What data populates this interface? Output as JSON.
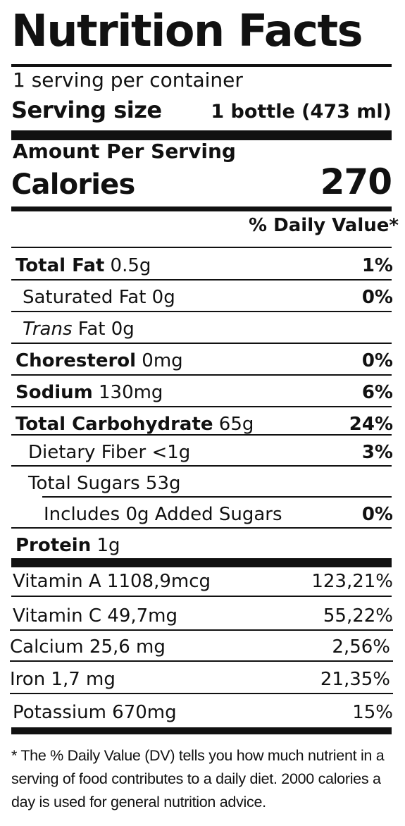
{
  "label": {
    "title": "Nutrition Facts",
    "servings_per_container": "1 serving per container",
    "serving_size_label": "Serving size",
    "serving_size_value": "1 bottle (473 ml)",
    "amount_per_serving": "Amount Per Serving",
    "calories_label": "Calories",
    "calories_value": "270",
    "daily_value_header": "% Daily Value*",
    "nutrients": [
      {
        "name": "Total Fat",
        "amount": " 0.5g",
        "dv": "1%"
      },
      {
        "name": "Saturated Fat 0g",
        "amount": "",
        "dv": "0%"
      },
      {
        "name": "Trans",
        "amount": " Fat 0g",
        "dv": ""
      },
      {
        "name": "Choresterol",
        "amount": " 0mg",
        "dv": "0%"
      },
      {
        "name": "Sodium",
        "amount": " 130mg",
        "dv": "6%"
      },
      {
        "name": "Total Carbohydrate",
        "amount": " 65g",
        "dv": "24%"
      },
      {
        "name": "Dietary Fiber <1g",
        "amount": "",
        "dv": "3%"
      },
      {
        "name": "Total Sugars 53g",
        "amount": "",
        "dv": ""
      },
      {
        "name": "Includes 0g Added Sugars",
        "amount": "",
        "dv": "0%"
      },
      {
        "name": "Protein",
        "amount": " 1g",
        "dv": ""
      }
    ],
    "vitamins": [
      {
        "name": "Vitamin A 1108,9mcg",
        "dv": "123,21%"
      },
      {
        "name": "Vitamin C 49,7mg",
        "dv": "55,22%"
      },
      {
        "name": "Calcium 25,6 mg",
        "dv": "2,56%"
      },
      {
        "name": "Iron 1,7 mg",
        "dv": "21,35%"
      },
      {
        "name": "Potassium 670mg",
        "dv": "15%"
      }
    ],
    "footnote": "* The % Daily Value (DV) tells you how much nutrient in a serving of food contributes to a daily diet. 2000 calories a day is used for general nutrition advice."
  }
}
